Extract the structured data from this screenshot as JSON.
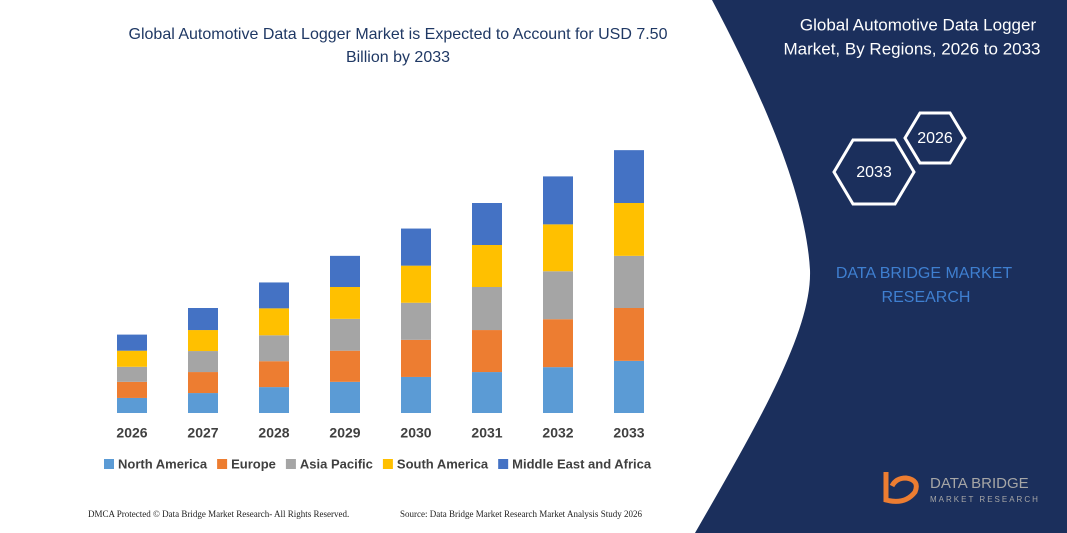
{
  "chart_data": {
    "type": "bar",
    "stacked": true,
    "title": "Global Automotive Data Logger Market is Expected to Account for USD 7.50 Billion by 2033",
    "categories": [
      "2026",
      "2027",
      "2028",
      "2029",
      "2030",
      "2031",
      "2032",
      "2033"
    ],
    "series": [
      {
        "name": "North America",
        "color": "#5b9bd5",
        "values": [
          0.43,
          0.57,
          0.74,
          0.89,
          1.03,
          1.17,
          1.31,
          1.49
        ]
      },
      {
        "name": "Europe",
        "color": "#ed7d31",
        "values": [
          0.46,
          0.6,
          0.74,
          0.89,
          1.06,
          1.2,
          1.37,
          1.51
        ]
      },
      {
        "name": "Asia Pacific",
        "color": "#a5a5a5",
        "values": [
          0.43,
          0.6,
          0.74,
          0.91,
          1.06,
          1.23,
          1.37,
          1.49
        ]
      },
      {
        "name": "South America",
        "color": "#ffc000",
        "values": [
          0.46,
          0.6,
          0.77,
          0.91,
          1.06,
          1.2,
          1.34,
          1.51
        ]
      },
      {
        "name": "Middle East and Africa",
        "color": "#4472c4",
        "values": [
          0.46,
          0.63,
          0.74,
          0.89,
          1.06,
          1.2,
          1.37,
          1.51
        ]
      }
    ]
  },
  "panel": {
    "title": [
      "Global Automotive Data Logger",
      "Market, By Regions, 2026 to 2033"
    ],
    "hexagons": [
      "2026",
      "2033"
    ],
    "brand": [
      "DATA BRIDGE MARKET",
      "RESEARCH"
    ]
  },
  "logo": {
    "name": "DATA BRIDGE",
    "tagline": "MARKET RESEARCH"
  },
  "footer": {
    "left": "DMCA Protected © Data Bridge Market Research- All Rights Reserved.",
    "right": "Source: Data Bridge Market Research Market Analysis Study 2026"
  }
}
